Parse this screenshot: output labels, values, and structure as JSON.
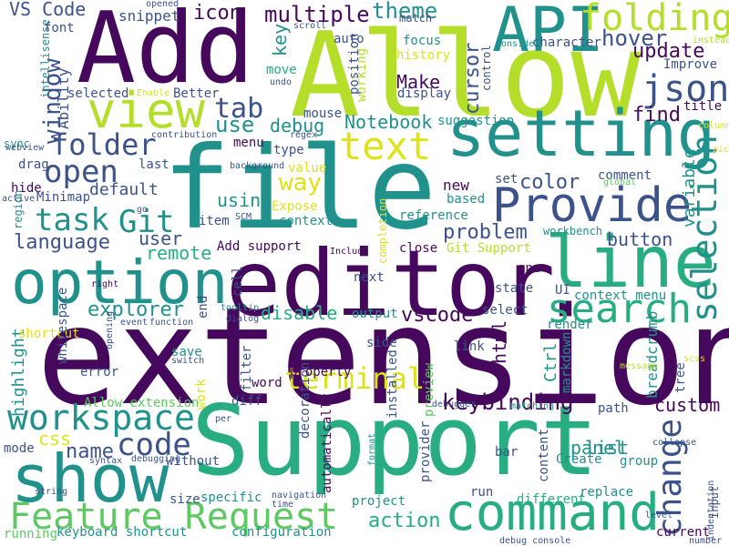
{
  "palette": {
    "purple": "#46085c",
    "indigo": "#3b528b",
    "blue": "#2c728e",
    "teal": "#21918c",
    "green": "#27ad81",
    "lime": "#5ec962",
    "yellow": "#b5de2b",
    "gold": "#dde318"
  },
  "words": [
    "extension",
    "Support",
    "Allow",
    "file",
    "Add",
    "editor",
    "setting",
    "line",
    "option",
    "command",
    "show",
    "API",
    "view",
    "Provide",
    "search",
    "folding",
    "json",
    "text",
    "workspace",
    "open",
    "terminal",
    "folder",
    "Feature Request",
    "task",
    "Git",
    "code",
    "selection",
    "change",
    "window",
    "tab",
    "language",
    "theme",
    "hover",
    "update",
    "multiple",
    "icon",
    "VS Code",
    "snippet",
    "find",
    "debug",
    "Notebook",
    "use",
    "key",
    "cursor",
    "Make",
    "custom",
    "keybinding",
    "problem",
    "explorer",
    "remote",
    "button",
    "panel",
    "vscode",
    "disable",
    "variable",
    "color",
    "default",
    "way",
    "using",
    "user",
    "Ability",
    "css",
    "name",
    "highlight",
    "shortcut",
    "html",
    "Ctrl",
    "list",
    "action",
    "keyboard shortcut",
    "configuration",
    "running",
    "project",
    "different",
    "replace",
    "current",
    "input",
    "group",
    "Create",
    "bar",
    "run",
    "provider",
    "content",
    "path",
    "breadcrumb",
    "tree",
    "markdown",
    "link",
    "preview",
    "installed",
    "output",
    "state",
    "select",
    "UI",
    "context menu",
    "render",
    "next",
    "close",
    "Git Support",
    "reference",
    "completion",
    "context",
    "Expose",
    "item",
    "value",
    "type",
    "mouse",
    "menu",
    "Add support",
    "suggestion",
    "history",
    "focus",
    "match",
    "working",
    "control",
    "auto",
    "position",
    "display",
    "mode",
    "drag",
    "hide",
    "region",
    "Minimap",
    "sync",
    "intellisense",
    "font",
    "Better",
    "Enable",
    "selected",
    "move",
    "undo",
    "scroll",
    "regex",
    "contribution",
    "background",
    "last",
    "go",
    "webview",
    "active",
    "SCM",
    "cell",
    "end",
    "tooltip",
    "dialog",
    "function",
    "event",
    "opening",
    "whitespace",
    "right",
    "save",
    "switch",
    "error",
    "filter",
    "work",
    "Allow extension",
    "diff",
    "word",
    "decoration",
    "automatically",
    "without",
    "syntax",
    "debugging",
    "size",
    "specific",
    "navigation",
    "time",
    "string",
    "property",
    "new",
    "based",
    "set",
    "one",
    "side",
    "comment",
    "global",
    "Include",
    "debugger",
    "message",
    "scss",
    "matching",
    "level",
    "collapse",
    "indentation",
    "number",
    "debug console",
    "format",
    "per",
    "workbench",
    "character",
    "Consider",
    "instead",
    "Improve",
    "title",
    "column",
    "picker",
    "opened"
  ]
}
